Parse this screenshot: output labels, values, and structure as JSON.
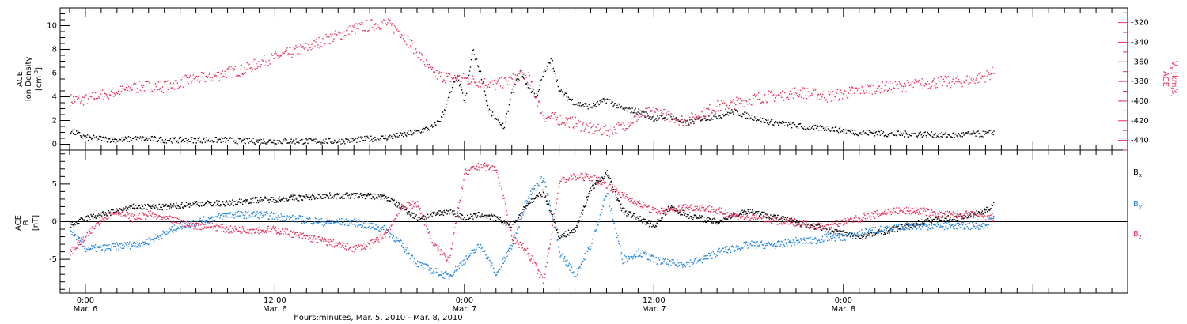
{
  "colors": {
    "black": "#000000",
    "pink": "#e8305a",
    "blue": "#1e82e0"
  },
  "x_axis": {
    "label": "hours:minutes, Mar.  5, 2010 - Mar.  8, 2010",
    "range_hours": [
      -1.6,
      66.0
    ],
    "ticks": [
      {
        "hours": 0,
        "time": "0:00",
        "date": "Mar. 6"
      },
      {
        "hours": 12,
        "time": "12:00",
        "date": "Mar. 6"
      },
      {
        "hours": 24,
        "time": "0:00",
        "date": "Mar. 7"
      },
      {
        "hours": 36,
        "time": "12:00",
        "date": "Mar. 7"
      },
      {
        "hours": 48,
        "time": "0:00",
        "date": "Mar. 8"
      }
    ]
  },
  "panel_top": {
    "left_label": {
      "line1": "ACE",
      "line2": "Ion Density",
      "line3": "[cm",
      "line3_sup": "-3",
      "line3_end": "]"
    },
    "right_label": {
      "line1": "ACE",
      "line2_base": "V",
      "line2_sub": "x",
      "line2_units": "[km/s]"
    },
    "left_ticks": [
      "0",
      "2",
      "4",
      "6",
      "8",
      "10"
    ],
    "right_ticks": [
      "-320",
      "-340",
      "-360",
      "-380",
      "-400",
      "-420",
      "-440"
    ]
  },
  "panel_bottom": {
    "left_label": {
      "line1": "ACE",
      "line2": "B",
      "line3": "[nT]"
    },
    "left_ticks": [
      "-5",
      "0",
      "5"
    ],
    "legend": [
      {
        "base": "B",
        "sub": "x",
        "color": "#000000"
      },
      {
        "base": "B",
        "sub": "y",
        "color": "#1e82e0"
      },
      {
        "base": "B",
        "sub": "z",
        "color": "#e8305a"
      }
    ]
  },
  "chart_data": [
    {
      "type": "scatter",
      "title": "",
      "xlabel": "hours:minutes, Mar.  5, 2010 - Mar.  8, 2010",
      "ylabel": "ACE Ion Density [cm-3]",
      "xlim": [
        -1.6,
        66.0
      ],
      "ylim": [
        -0.5,
        11.5
      ],
      "y2label": "ACE Vx [km/s]",
      "y2lim": [
        -450,
        -305
      ],
      "series": [
        {
          "name": "Ion Density",
          "axis": "left",
          "color": "#000000",
          "x": [
            -1,
            0,
            1,
            2,
            3,
            4,
            5,
            6,
            7,
            8,
            9,
            10,
            11,
            12,
            13,
            14,
            15,
            16,
            17,
            18,
            19,
            20,
            21,
            22,
            22.5,
            23,
            23.5,
            24,
            24.5,
            25,
            25.5,
            26,
            26.5,
            27,
            27.5,
            28,
            28.5,
            29,
            29.5,
            30,
            31,
            32,
            33,
            34,
            35,
            36,
            37,
            38,
            39,
            40,
            41,
            42,
            43,
            44,
            45,
            46,
            47,
            48,
            49,
            50,
            51,
            52,
            53,
            54,
            55,
            56,
            57,
            57.5
          ],
          "y": [
            1.2,
            0.6,
            0.5,
            0.4,
            0.5,
            0.5,
            0.4,
            0.4,
            0.4,
            0.4,
            0.4,
            0.3,
            0.3,
            0.3,
            0.3,
            0.3,
            0.3,
            0.3,
            0.4,
            0.5,
            0.6,
            0.8,
            1.1,
            1.5,
            2.2,
            4.0,
            5.8,
            3.5,
            8.0,
            6.0,
            3.0,
            2.0,
            1.5,
            4.5,
            6.0,
            5.0,
            4.0,
            6.0,
            7.2,
            4.5,
            3.5,
            3.2,
            3.8,
            3.0,
            2.8,
            2.2,
            2.4,
            1.8,
            2.2,
            2.4,
            2.8,
            2.4,
            2.0,
            1.8,
            1.6,
            1.4,
            1.4,
            1.2,
            1.0,
            1.0,
            0.9,
            0.9,
            0.9,
            0.8,
            0.8,
            0.9,
            0.9,
            1.1
          ]
        },
        {
          "name": "Vx",
          "axis": "right",
          "color": "#e8305a",
          "x": [
            -1,
            0,
            1,
            2,
            3,
            4,
            5,
            6,
            7,
            8,
            9,
            10,
            11,
            12,
            13,
            14,
            15,
            16,
            17,
            18,
            19,
            20,
            21,
            22,
            23,
            24,
            25,
            26,
            27,
            27.5,
            28,
            28.5,
            29,
            30,
            31,
            32,
            33,
            34,
            35,
            36,
            37,
            38,
            39,
            40,
            41,
            42,
            43,
            44,
            45,
            46,
            47,
            48,
            49,
            50,
            51,
            52,
            53,
            54,
            55,
            56,
            57,
            57.5
          ],
          "y": [
            -398,
            -398,
            -393,
            -390,
            -386,
            -384,
            -385,
            -380,
            -377,
            -375,
            -370,
            -368,
            -360,
            -355,
            -350,
            -345,
            -338,
            -332,
            -326,
            -322,
            -320,
            -330,
            -350,
            -372,
            -376,
            -377,
            -380,
            -383,
            -378,
            -372,
            -375,
            -395,
            -415,
            -418,
            -422,
            -428,
            -430,
            -425,
            -415,
            -410,
            -415,
            -420,
            -412,
            -405,
            -402,
            -398,
            -395,
            -394,
            -390,
            -392,
            -395,
            -392,
            -388,
            -386,
            -385,
            -384,
            -382,
            -380,
            -380,
            -378,
            -374,
            -370
          ]
        }
      ]
    },
    {
      "type": "scatter",
      "title": "",
      "xlabel": "hours:minutes, Mar.  5, 2010 - Mar.  8, 2010",
      "ylabel": "ACE B [nT]",
      "xlim": [
        -1.6,
        66.0
      ],
      "ylim": [
        -9.5,
        9.5
      ],
      "series": [
        {
          "name": "Bx",
          "color": "#000000",
          "x": [
            -1,
            0,
            1,
            2,
            3,
            4,
            5,
            6,
            7,
            8,
            9,
            10,
            11,
            12,
            13,
            14,
            15,
            16,
            17,
            18,
            19,
            20,
            21,
            22,
            23,
            24,
            25,
            26,
            27,
            28,
            29,
            30,
            31,
            32,
            33,
            34,
            35,
            36,
            37,
            38,
            39,
            40,
            41,
            42,
            43,
            44,
            45,
            46,
            47,
            48,
            49,
            50,
            51,
            52,
            53,
            54,
            55,
            56,
            57,
            57.5
          ],
          "y": [
            -0.5,
            0.5,
            1.0,
            1.5,
            2.0,
            2.0,
            2.0,
            2.2,
            2.5,
            2.5,
            2.5,
            2.8,
            3.0,
            3.0,
            3.2,
            3.3,
            3.5,
            3.5,
            3.5,
            3.5,
            3.3,
            2.0,
            0.5,
            1.0,
            1.5,
            0.5,
            1.0,
            0.5,
            -0.5,
            2.5,
            4.0,
            -2.0,
            -1.0,
            4.5,
            6.5,
            1.5,
            0.5,
            -0.5,
            2.0,
            1.0,
            0.5,
            0.0,
            1.0,
            1.5,
            1.0,
            0.5,
            0.0,
            -0.5,
            -1.0,
            -1.5,
            -2.0,
            -1.5,
            -1.0,
            -0.5,
            0.0,
            0.5,
            0.5,
            1.0,
            1.5,
            2.5
          ]
        },
        {
          "name": "By",
          "color": "#1e82e0",
          "x": [
            -1,
            0,
            1,
            2,
            3,
            4,
            5,
            6,
            7,
            8,
            9,
            10,
            11,
            12,
            13,
            14,
            15,
            16,
            17,
            18,
            19,
            20,
            21,
            22,
            23,
            24,
            25,
            26,
            27,
            28,
            29,
            30,
            31,
            32,
            33,
            34,
            35,
            36,
            37,
            38,
            39,
            40,
            41,
            42,
            43,
            44,
            45,
            46,
            47,
            48,
            49,
            50,
            51,
            52,
            53,
            54,
            55,
            56,
            57,
            57.5
          ],
          "y": [
            -1.0,
            -3.5,
            -3.5,
            -3.2,
            -3.0,
            -2.5,
            -1.5,
            -0.5,
            0.0,
            0.5,
            1.0,
            1.0,
            1.0,
            0.8,
            0.5,
            0.3,
            0.0,
            0.0,
            0.0,
            -0.5,
            -1.0,
            -3.0,
            -5.5,
            -6.5,
            -7.2,
            -5.0,
            -3.0,
            -7.0,
            -3.0,
            3.5,
            6.0,
            -4.0,
            -7.0,
            -3.0,
            4.0,
            -5.0,
            -4.0,
            -5.0,
            -5.5,
            -5.5,
            -5.0,
            -4.0,
            -3.5,
            -3.0,
            -3.0,
            -3.0,
            -2.5,
            -2.5,
            -2.0,
            -2.0,
            -1.5,
            -1.0,
            -1.0,
            -0.5,
            -0.5,
            -0.5,
            -0.5,
            -0.5,
            -0.5,
            1.0
          ]
        },
        {
          "name": "Bz",
          "color": "#e8305a",
          "x": [
            -1,
            0,
            1,
            2,
            3,
            4,
            5,
            6,
            7,
            8,
            9,
            10,
            11,
            12,
            13,
            14,
            15,
            16,
            17,
            18,
            19,
            20,
            21,
            22,
            23,
            24,
            25,
            26,
            27,
            28,
            29,
            30,
            31,
            32,
            33,
            34,
            35,
            36,
            37,
            38,
            39,
            40,
            41,
            42,
            43,
            44,
            45,
            46,
            47,
            48,
            49,
            50,
            51,
            52,
            53,
            54,
            55,
            56,
            57,
            57.5
          ],
          "y": [
            -4.0,
            -2.0,
            0.5,
            1.5,
            0.5,
            1.0,
            0.5,
            0.0,
            -0.5,
            -0.5,
            -1.0,
            -1.0,
            -1.0,
            -1.0,
            -1.5,
            -2.0,
            -2.5,
            -3.0,
            -3.5,
            -3.0,
            -1.5,
            2.0,
            2.5,
            -3.0,
            -5.0,
            6.5,
            7.5,
            7.0,
            -2.0,
            -4.0,
            -8.0,
            5.5,
            6.0,
            6.0,
            5.0,
            3.5,
            2.5,
            1.5,
            1.5,
            2.0,
            2.0,
            1.5,
            1.0,
            0.5,
            0.5,
            0.0,
            0.0,
            -0.5,
            -0.5,
            0.0,
            0.5,
            1.0,
            1.5,
            1.5,
            1.5,
            1.0,
            1.0,
            1.0,
            0.5,
            0.5
          ]
        }
      ]
    }
  ]
}
